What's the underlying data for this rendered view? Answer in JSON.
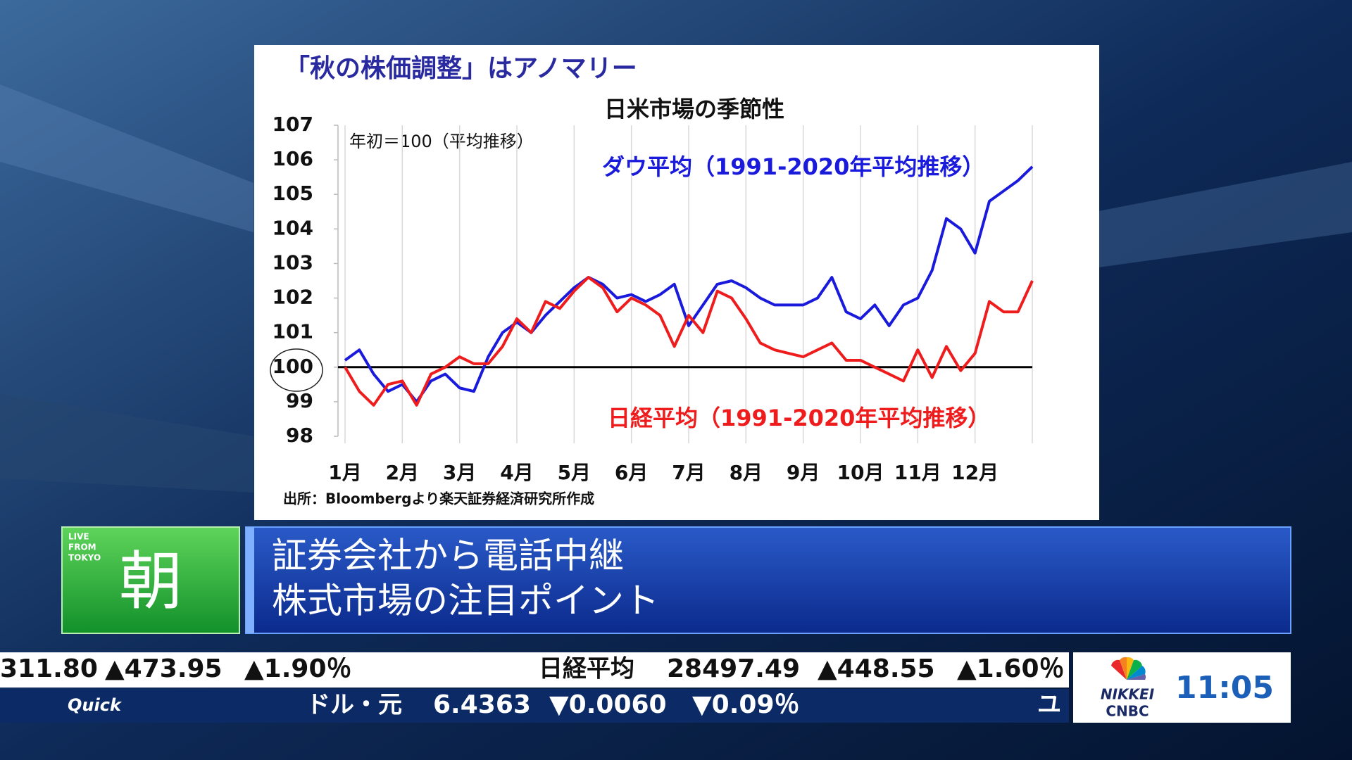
{
  "chart_data": {
    "type": "line",
    "title": "「秋の株価調整」はアノマリー",
    "subtitle": "日米市場の季節性",
    "annotation": "年初＝100（平均推移）",
    "source": "出所：Bloombergより楽天証券経済研究所作成",
    "x": [
      1,
      1.25,
      1.5,
      1.75,
      2,
      2.25,
      2.5,
      2.75,
      3,
      3.25,
      3.5,
      3.75,
      4,
      4.25,
      4.5,
      4.75,
      5,
      5.25,
      5.5,
      5.75,
      6,
      6.25,
      6.5,
      6.75,
      7,
      7.25,
      7.5,
      7.75,
      8,
      8.25,
      8.5,
      8.75,
      9,
      9.25,
      9.5,
      9.75,
      10,
      10.25,
      10.5,
      10.75,
      11,
      11.25,
      11.5,
      11.75,
      12,
      12.25,
      12.5,
      12.75,
      13
    ],
    "series": [
      {
        "name": "ダウ平均（1991-2020年平均推移）",
        "color": "#1a1adc",
        "values": [
          100.2,
          100.5,
          99.8,
          99.3,
          99.5,
          99.0,
          99.6,
          99.8,
          99.4,
          99.3,
          100.3,
          101.0,
          101.3,
          101.0,
          101.5,
          101.9,
          102.3,
          102.6,
          102.4,
          102.0,
          102.1,
          101.9,
          102.1,
          102.4,
          101.2,
          101.8,
          102.4,
          102.5,
          102.3,
          102.0,
          101.8,
          101.8,
          101.8,
          102.0,
          102.6,
          101.6,
          101.4,
          101.8,
          101.2,
          101.8,
          102.0,
          102.8,
          104.3,
          104.0,
          103.3,
          104.8,
          105.1,
          105.4,
          105.8
        ]
      },
      {
        "name": "日経平均（1991-2020年平均推移）",
        "color": "#ee1c1c",
        "values": [
          100.0,
          99.3,
          98.9,
          99.5,
          99.6,
          98.9,
          99.8,
          100.0,
          100.3,
          100.1,
          100.1,
          100.6,
          101.4,
          101.0,
          101.9,
          101.7,
          102.2,
          102.6,
          102.3,
          101.6,
          102.0,
          101.8,
          101.5,
          100.6,
          101.5,
          101.0,
          102.2,
          102.0,
          101.4,
          100.7,
          100.5,
          100.4,
          100.3,
          100.5,
          100.7,
          100.2,
          100.2,
          100.0,
          99.8,
          99.6,
          100.5,
          99.7,
          100.6,
          99.9,
          100.4,
          101.9,
          101.6,
          101.6,
          102.5
        ]
      }
    ],
    "baseline": 100,
    "xlim": [
      1,
      13
    ],
    "xticks": [
      {
        "value": 1,
        "label": "1月"
      },
      {
        "value": 2,
        "label": "2月"
      },
      {
        "value": 3,
        "label": "3月"
      },
      {
        "value": 4,
        "label": "4月"
      },
      {
        "value": 5,
        "label": "5月"
      },
      {
        "value": 6,
        "label": "6月"
      },
      {
        "value": 7,
        "label": "7月"
      },
      {
        "value": 8,
        "label": "8月"
      },
      {
        "value": 9,
        "label": "9月"
      },
      {
        "value": 10,
        "label": "10月"
      },
      {
        "value": 11,
        "label": "11月"
      },
      {
        "value": 12,
        "label": "12月"
      }
    ],
    "ylim": [
      98,
      107
    ],
    "yticks": [
      98,
      99,
      100,
      101,
      102,
      103,
      104,
      105,
      106,
      107
    ],
    "grid": true
  },
  "broadcast": {
    "logo": {
      "tag": [
        "LIVE",
        "FROM",
        "TOKYO"
      ],
      "name": "朝"
    },
    "headline": [
      "証券会社から電話中継",
      "株式市場の注目ポイント"
    ],
    "ticker": [
      [
        "311.80",
        "▲473.95",
        "▲1.90％",
        "日経平均",
        "28497.49",
        "▲448.55",
        "▲1.60％"
      ],
      [
        "Quick",
        "ドル・元",
        "6.4363",
        "▼0.0060",
        "▼0.09％",
        "ユ"
      ]
    ],
    "network": [
      "NIKKEI",
      "CNBC"
    ],
    "clock": "11:05"
  }
}
